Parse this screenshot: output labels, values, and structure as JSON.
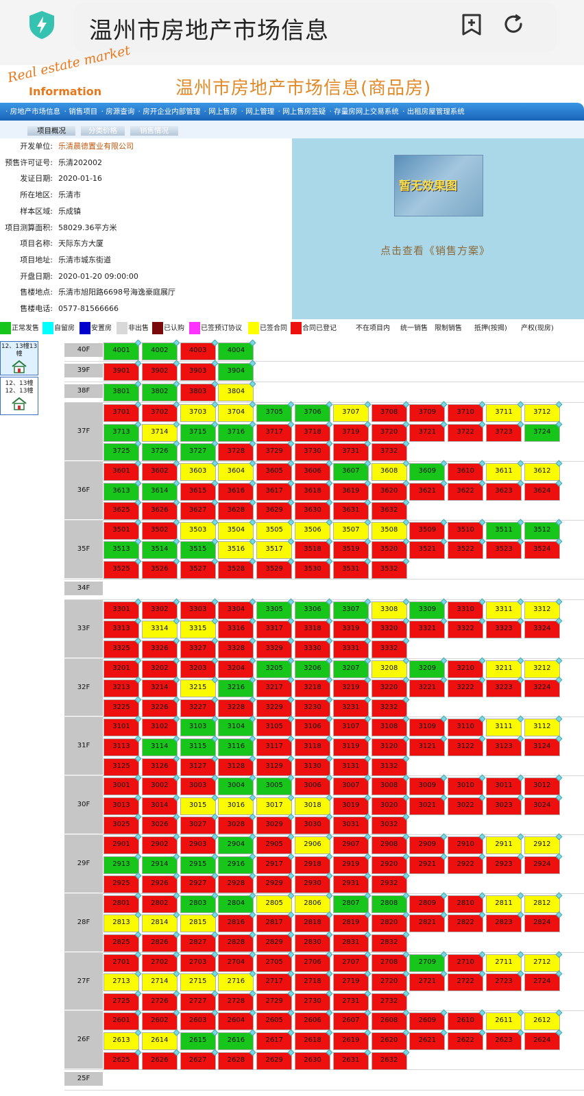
{
  "browser": {
    "title": "温州市房地产市场信息"
  },
  "site": {
    "logo_line1": "Real estate market",
    "logo_line2": "Information",
    "title": "温州市房地产市场信息(商品房)"
  },
  "nav": [
    "· 房地产市场信息",
    "· 销售项目",
    "· 房源查询",
    "· 房开企业内部管理",
    "· 网上售房",
    "· 网上管理",
    "· 网上售房签疑",
    "· 存量房网上交易系统",
    "· 出租房屋管理系统"
  ],
  "tabs": [
    "项目概况",
    "分类价格",
    "销售情况"
  ],
  "info": [
    {
      "label": "开发单位:",
      "value": "乐清晨德置业有限公司"
    },
    {
      "label": "预售许可证号:",
      "value": "乐清202002"
    },
    {
      "label": "发证日期:",
      "value": "2020-01-16"
    },
    {
      "label": "所在地区:",
      "value": "乐清市"
    },
    {
      "label": "样本区域:",
      "value": "乐成镇"
    },
    {
      "label": "项目测算面积:",
      "value": "58029.36平方米"
    },
    {
      "label": "项目名称:",
      "value": "天际东方大厦"
    },
    {
      "label": "项目地址:",
      "value": "乐清市城东街道"
    },
    {
      "label": "开盘日期:",
      "value": "2020-01-20 09:00:00"
    },
    {
      "label": "售楼地点:",
      "value": "乐清市旭阳路6698号海逸豪庭展厅"
    },
    {
      "label": "售楼电话:",
      "value": "0577-81566666"
    }
  ],
  "image_panel": {
    "placeholder": "暂无效果图",
    "link": "点击查看《销售方案》"
  },
  "colors": {
    "G": "#17c51b",
    "R": "#ee0f0f",
    "Y": "#fbfb00"
  },
  "legend": [
    {
      "name": "正常发售",
      "color": "#17c51b"
    },
    {
      "name": "自留房",
      "color": "#00ffff"
    },
    {
      "name": "安置房",
      "color": "#0000cc"
    },
    {
      "name": "非出售",
      "color": "#d8d8d8"
    },
    {
      "name": "已认购",
      "color": "#7a0a0a"
    },
    {
      "name": "已签预订协议",
      "color": "#ff33ff"
    },
    {
      "name": "已签合同",
      "color": "#ffff00"
    },
    {
      "name": "合同已登记",
      "color": "#ee0f0f"
    },
    {
      "name": "不在项目内",
      "color": "#ffffff"
    },
    {
      "name": "统一销售",
      "color": "#ffffff"
    },
    {
      "name": "限制销售",
      "color": "#ffffff"
    },
    {
      "name": "抵押(按揭)",
      "color": "#ffffff"
    },
    {
      "name": "产权(现房)",
      "color": "#ffffff"
    }
  ],
  "buildings": [
    "12、13幢13幢",
    "12、13幢\n12、13幢"
  ],
  "floors": [
    {
      "label": "40F",
      "rows": [
        "GGRG"
      ]
    },
    {
      "label": "39F",
      "rows": [
        "RRRG"
      ]
    },
    {
      "label": "38F",
      "rows": [
        "GGRY"
      ]
    },
    {
      "label": "37F",
      "rows": [
        "RRYYGGYRRRYY",
        "GYGGRRRRRRRG",
        "GGGRRRRR"
      ]
    },
    {
      "label": "36F",
      "rows": [
        "RRYYRRGYGRYY",
        "GGRRRRRRRRRR",
        "RRRRRRRR"
      ]
    },
    {
      "label": "35F",
      "rows": [
        "RRYYYYYYRRGG",
        "GGGYYRRRRRRR",
        "RRRRRRRR"
      ]
    },
    {
      "label": "34F",
      "rows": []
    },
    {
      "label": "33F",
      "rows": [
        "RRRRGGGYGRYY",
        "RYYRRRRRRRRR",
        "RRRRRRRR"
      ]
    },
    {
      "label": "32F",
      "rows": [
        "RRRRGGGYGRYY",
        "RRYGRRRRRRRR",
        "RRRRRRRR"
      ]
    },
    {
      "label": "31F",
      "rows": [
        "RRGGRRRRRRYY",
        "RGGGRRRRRRRR",
        "RRRRRRRR"
      ]
    },
    {
      "label": "30F",
      "rows": [
        "RRRGGRRRRRRR",
        "RRYYYYRRRRRR",
        "RRRRRRRR"
      ]
    },
    {
      "label": "29F",
      "rows": [
        "RRRGRYRRRRYY",
        "GGGGRRRRRRRR",
        "RRRRRRRR"
      ]
    },
    {
      "label": "28F",
      "rows": [
        "RRGGYYGGRRYY",
        "YYYRRRRRRRRR",
        "RRRRRRRR"
      ]
    },
    {
      "label": "27F",
      "rows": [
        "RRRRRRRRGRYY",
        "YYYYRRRRRRRR",
        "RRRRRRRR"
      ]
    },
    {
      "label": "26F",
      "rows": [
        "RRRRRRRRRRYY",
        "YYGGRRRRRRRR",
        "RRRRRRRR"
      ]
    },
    {
      "label": "25F",
      "rows": []
    }
  ]
}
